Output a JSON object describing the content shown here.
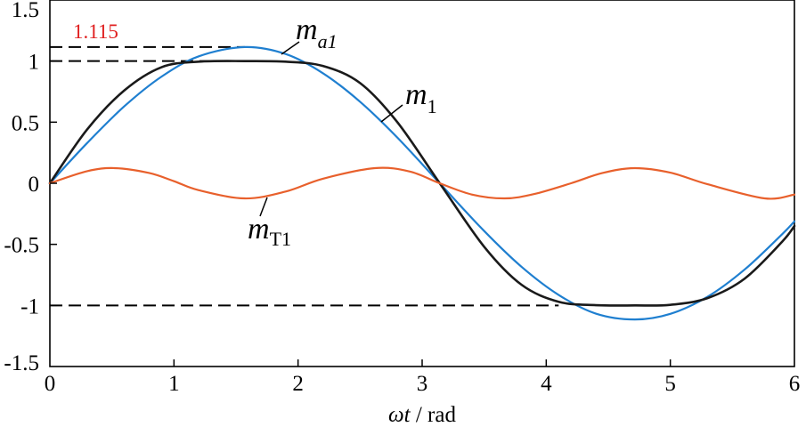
{
  "chart_data": {
    "type": "line",
    "xlabel_italic": "ωt",
    "xlabel_unit": " / rad",
    "xlim": [
      0,
      6
    ],
    "ylim": [
      -1.5,
      1.5
    ],
    "x_ticks": [
      0,
      1,
      2,
      3,
      4,
      5,
      6
    ],
    "x_tick_labels": [
      "0",
      "1",
      "2",
      "3",
      "4",
      "5",
      "6"
    ],
    "y_ticks": [
      1.5,
      1,
      0.5,
      0,
      -0.5,
      -1,
      -1.5
    ],
    "y_tick_labels": [
      "1.5",
      "1",
      "0.5",
      "0",
      "-0.5",
      "-1",
      "-1.5"
    ],
    "grid": false,
    "series": [
      {
        "name": "m_a1",
        "label_main": "m",
        "label_sub": "a1",
        "color": "#1f7fd0",
        "x": [
          0,
          0.3,
          0.6,
          0.9,
          1.2,
          1.5708,
          1.9,
          2.2,
          2.5,
          2.8,
          3.1416,
          3.5,
          3.8,
          4.1,
          4.4,
          4.7124,
          5.0,
          5.3,
          5.6,
          5.9,
          6.0
        ],
        "y": [
          0,
          0.329,
          0.63,
          0.873,
          1.039,
          1.115,
          1.058,
          0.901,
          0.667,
          0.374,
          0,
          -0.391,
          -0.683,
          -0.914,
          -1.067,
          -1.115,
          -1.069,
          -0.929,
          -0.705,
          -0.418,
          -0.312
        ]
      },
      {
        "name": "m_1",
        "label_main": "m",
        "label_sub": "1",
        "color": "#1a1a1a",
        "x": [
          0,
          0.3,
          0.6,
          0.9,
          1.2,
          1.5708,
          1.9,
          2.2,
          2.5,
          2.8,
          3.1416,
          3.5,
          3.8,
          4.1,
          4.4,
          4.7124,
          5.0,
          5.3,
          5.6,
          5.9,
          6.0
        ],
        "y": [
          0,
          0.44,
          0.76,
          0.95,
          0.995,
          1.0,
          0.995,
          0.96,
          0.82,
          0.5,
          0,
          -0.52,
          -0.83,
          -0.97,
          -0.998,
          -1.0,
          -0.995,
          -0.94,
          -0.78,
          -0.48,
          -0.35
        ]
      },
      {
        "name": "m_T1",
        "label_main": "m",
        "label_sub": "T1",
        "color": "#e8602c",
        "x": [
          0,
          0.3,
          0.5236,
          0.8,
          1.0,
          1.2,
          1.5708,
          1.9,
          2.2,
          2.618,
          2.9,
          3.1416,
          3.4,
          3.6652,
          3.9,
          4.2,
          4.45,
          4.7124,
          5.0,
          5.3,
          5.7596,
          6.0
        ],
        "y": [
          0,
          0.099,
          0.124,
          0.084,
          0.017,
          -0.057,
          -0.124,
          -0.068,
          0.037,
          0.124,
          0.096,
          0,
          -0.092,
          -0.124,
          -0.089,
          -0.0,
          0.083,
          0.124,
          0.087,
          -0.008,
          -0.124,
          -0.093
        ]
      }
    ],
    "reference_lines": [
      {
        "y": 1.115,
        "x_end": 1.5708
      },
      {
        "y": 1,
        "x_end": 1.8
      },
      {
        "y": -1,
        "x_end": 4.1
      }
    ],
    "annotation": {
      "text": "1.115",
      "color": "#e02020"
    }
  }
}
